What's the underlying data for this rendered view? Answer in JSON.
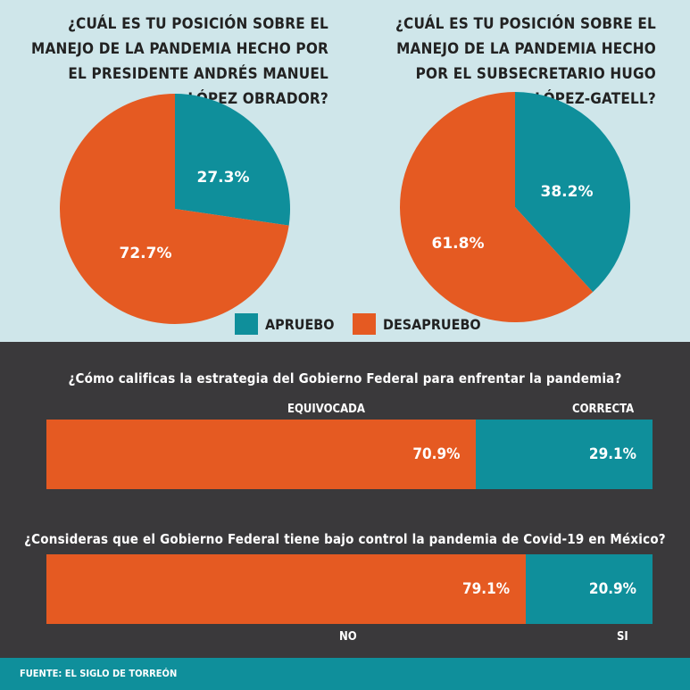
{
  "colors": {
    "aprueba": "#0f8f9b",
    "desaprueba": "#e55a22"
  },
  "top": {
    "question_1": "¿Cuál es tu posición sobre el manejo de la pandemia hecho por el presidente Andrés Manuel López Obrador?",
    "question_2": "¿Cuál es tu posición sobre el manejo de la pandemia hecho por el subsecretario Hugo López-Gatell?",
    "legend": {
      "apruebo": "APRUEBO",
      "desapruebo": "DESAPRUEBO"
    }
  },
  "bottom": {
    "question_3": "¿Cómo calificas la estrategia del Gobierno Federal para enfrentar la pandemia?",
    "label_equivocada": "EQUIVOCADA",
    "label_correcta": "CORRECTA",
    "question_4": "¿Consideras que el Gobierno Federal tiene bajo control la pandemia de Covid-19 en México?",
    "label_no": "NO",
    "label_si": "SI"
  },
  "footer": {
    "source": "FUENTE: EL SIGLO DE TORREÓN"
  },
  "chart_data": [
    {
      "type": "pie",
      "title": "¿Cuál es tu posición sobre el manejo de la pandemia hecho por el presidente Andrés Manuel López Obrador?",
      "slices": [
        {
          "name": "APRUEBO",
          "value": 27.3,
          "label": "27.3%"
        },
        {
          "name": "DESAPRUEBO",
          "value": 72.7,
          "label": "72.7%"
        }
      ]
    },
    {
      "type": "pie",
      "title": "¿Cuál es tu posición sobre el manejo de la pandemia hecho por el subsecretario Hugo López-Gatell?",
      "slices": [
        {
          "name": "APRUEBO",
          "value": 38.2,
          "label": "38.2%"
        },
        {
          "name": "DESAPRUEBO",
          "value": 61.8,
          "label": "61.8%"
        }
      ]
    },
    {
      "type": "bar",
      "title": "¿Cómo calificas la estrategia del Gobierno Federal para enfrentar la pandemia?",
      "categories": [
        "EQUIVOCADA",
        "CORRECTA"
      ],
      "values": [
        70.9,
        29.1
      ],
      "labels": [
        "70.9%",
        "29.1%"
      ]
    },
    {
      "type": "bar",
      "title": "¿Consideras que el Gobierno Federal tiene bajo control la pandemia de Covid-19 en México?",
      "categories": [
        "NO",
        "SI"
      ],
      "values": [
        79.1,
        20.9
      ],
      "labels": [
        "79.1%",
        "20.9%"
      ]
    }
  ]
}
